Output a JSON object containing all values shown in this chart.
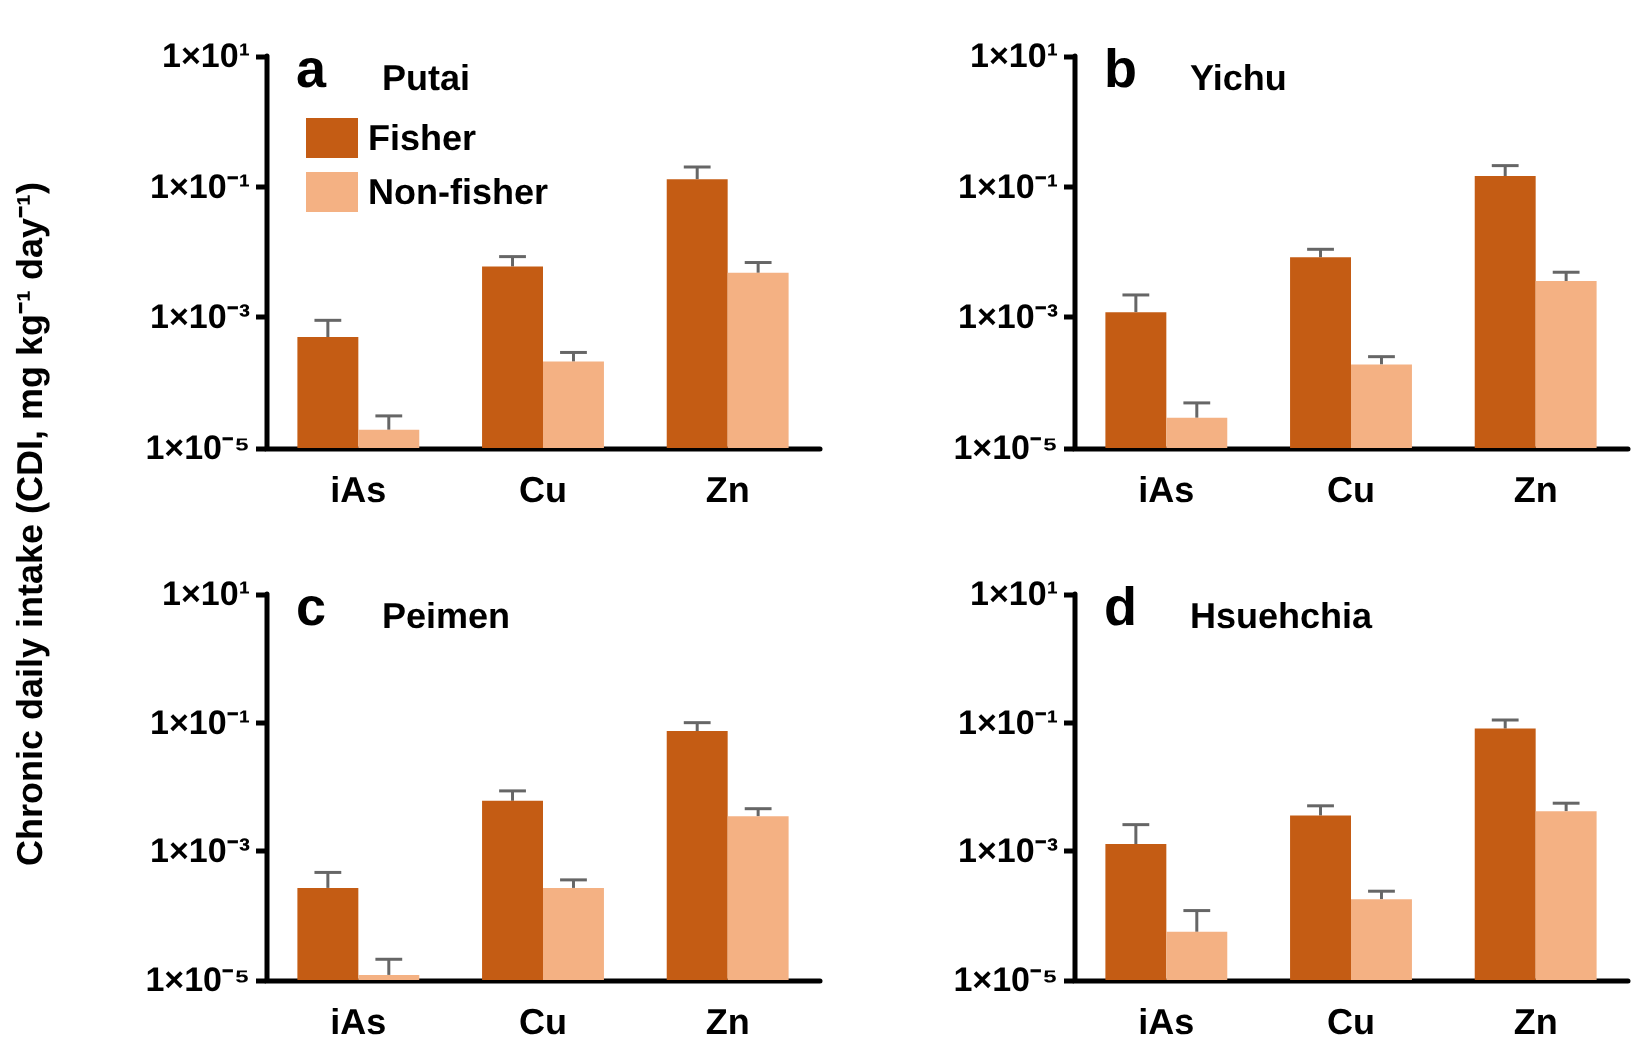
{
  "chart_data": [
    {
      "type": "bar",
      "title": "Putai",
      "annotations": [
        "a"
      ],
      "ylabel": "Chronic daily intake (CDI, mg kg⁻¹ day⁻¹)",
      "categories": [
        "iAs",
        "Cu",
        "Zn"
      ],
      "log": true,
      "legend": "top left",
      "ylim": [
        1e-05,
        10
      ],
      "yticks": [
        {
          "value": 1e-05,
          "label": "1×10⁻⁵"
        },
        {
          "value": 0.001,
          "label": "1×10⁻³"
        },
        {
          "value": 0.1,
          "label": "1×10⁻¹"
        },
        {
          "value": 10,
          "label": "1×10¹"
        }
      ],
      "series": [
        {
          "name": "Fisher",
          "color": "#c45c14",
          "values": [
            0.0005,
            0.006,
            0.13
          ],
          "errors": [
            [
              0.0005,
              0.0009
            ],
            [
              0.006,
              0.0085
            ],
            [
              0.13,
              0.2
            ]
          ]
        },
        {
          "name": "Non-fisher",
          "color": "#f4b183",
          "values": [
            1.9e-05,
            0.00021,
            0.0048
          ],
          "errors": [
            [
              1.9e-05,
              3.1e-05
            ],
            [
              0.00021,
              0.00029
            ],
            [
              0.0048,
              0.0069
            ]
          ]
        }
      ]
    },
    {
      "type": "bar",
      "title": "Yichu",
      "annotations": [
        "b"
      ],
      "categories": [
        "iAs",
        "Cu",
        "Zn"
      ],
      "log": true,
      "ylim": [
        1e-05,
        10
      ],
      "yticks": [
        {
          "value": 1e-05,
          "label": "1×10⁻⁵"
        },
        {
          "value": 0.001,
          "label": "1×10⁻³"
        },
        {
          "value": 0.1,
          "label": "1×10⁻¹"
        },
        {
          "value": 10,
          "label": "1×10¹"
        }
      ],
      "series": [
        {
          "color": "#c45c14",
          "values": [
            0.0012,
            0.0083,
            0.145
          ],
          "errors": [
            [
              0.0012,
              0.0022
            ],
            [
              0.0083,
              0.011
            ],
            [
              0.145,
              0.21
            ]
          ]
        },
        {
          "color": "#f4b183",
          "values": [
            2.9e-05,
            0.00019,
            0.0036
          ],
          "errors": [
            [
              2.9e-05,
              4.9e-05
            ],
            [
              0.00019,
              0.00025
            ],
            [
              0.0036,
              0.0049
            ]
          ]
        }
      ]
    },
    {
      "type": "bar",
      "title": "Peimen",
      "annotations": [
        "c"
      ],
      "categories": [
        "iAs",
        "Cu",
        "Zn"
      ],
      "log": true,
      "ylim": [
        1e-05,
        10
      ],
      "yticks": [
        {
          "value": 1e-05,
          "label": "1×10⁻⁵"
        },
        {
          "value": 0.001,
          "label": "1×10⁻³"
        },
        {
          "value": 0.1,
          "label": "1×10⁻¹"
        },
        {
          "value": 10,
          "label": "1×10¹"
        }
      ],
      "series": [
        {
          "color": "#c45c14",
          "values": [
            0.00027,
            0.0061,
            0.074
          ],
          "errors": [
            [
              0.00027,
              0.00047
            ],
            [
              0.0061,
              0.0087
            ],
            [
              0.074,
              0.1
            ]
          ]
        },
        {
          "color": "#f4b183",
          "values": [
            1.2e-05,
            0.00027,
            0.0035
          ],
          "errors": [
            [
              1.2e-05,
              2.1e-05
            ],
            [
              0.00027,
              0.00036
            ],
            [
              0.0035,
              0.0046
            ]
          ]
        }
      ]
    },
    {
      "type": "bar",
      "title": "Hsuehchia",
      "annotations": [
        "d"
      ],
      "categories": [
        "iAs",
        "Cu",
        "Zn"
      ],
      "log": true,
      "ylim": [
        1e-05,
        10
      ],
      "yticks": [
        {
          "value": 1e-05,
          "label": "1×10⁻⁵"
        },
        {
          "value": 0.001,
          "label": "1×10⁻³"
        },
        {
          "value": 0.1,
          "label": "1×10⁻¹"
        },
        {
          "value": 10,
          "label": "1×10¹"
        }
      ],
      "series": [
        {
          "color": "#c45c14",
          "values": [
            0.0013,
            0.0036,
            0.081
          ],
          "errors": [
            [
              0.0013,
              0.0026
            ],
            [
              0.0036,
              0.0051
            ],
            [
              0.081,
              0.11
            ]
          ]
        },
        {
          "color": "#f4b183",
          "values": [
            5.6e-05,
            0.00018,
            0.0042
          ],
          "errors": [
            [
              5.6e-05,
              0.00012
            ],
            [
              0.00018,
              0.00024
            ],
            [
              0.0042,
              0.0056
            ]
          ]
        }
      ]
    }
  ]
}
